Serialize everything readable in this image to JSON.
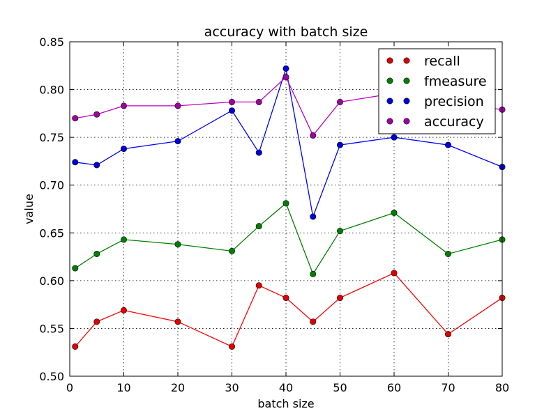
{
  "chart_data": {
    "type": "line",
    "title": "accuracy with batch size",
    "xlabel": "batch size",
    "ylabel": "value",
    "xlim": [
      0,
      80
    ],
    "ylim": [
      0.5,
      0.85
    ],
    "xticks": [
      0,
      10,
      20,
      30,
      40,
      50,
      60,
      70,
      80
    ],
    "yticks": [
      0.5,
      0.55,
      0.6,
      0.65,
      0.7,
      0.75,
      0.8,
      0.85
    ],
    "x": [
      1,
      5,
      10,
      20,
      30,
      35,
      40,
      45,
      50,
      60,
      70,
      80
    ],
    "grid": true,
    "legend_position": "top-right",
    "series": [
      {
        "name": "recall",
        "color": "#ff0000",
        "marker_color": "#e00000",
        "values": [
          0.531,
          0.557,
          0.569,
          0.557,
          0.531,
          0.595,
          0.582,
          0.557,
          0.582,
          0.608,
          0.544,
          0.582
        ]
      },
      {
        "name": "fmeasure",
        "color": "#008000",
        "marker_color": "#008000",
        "values": [
          0.613,
          0.628,
          0.643,
          0.638,
          0.631,
          0.657,
          0.681,
          0.607,
          0.652,
          0.671,
          0.628,
          0.643
        ]
      },
      {
        "name": "precision",
        "color": "#0000ff",
        "marker_color": "#0000e0",
        "values": [
          0.724,
          0.721,
          0.738,
          0.746,
          0.778,
          0.734,
          0.822,
          0.667,
          0.742,
          0.75,
          0.742,
          0.719
        ]
      },
      {
        "name": "accuracy",
        "color": "#bf00bf",
        "marker_color": "#a000a0",
        "values": [
          0.77,
          0.774,
          0.783,
          0.783,
          0.787,
          0.787,
          0.813,
          0.752,
          0.787,
          0.796,
          0.787,
          0.779
        ]
      }
    ]
  }
}
